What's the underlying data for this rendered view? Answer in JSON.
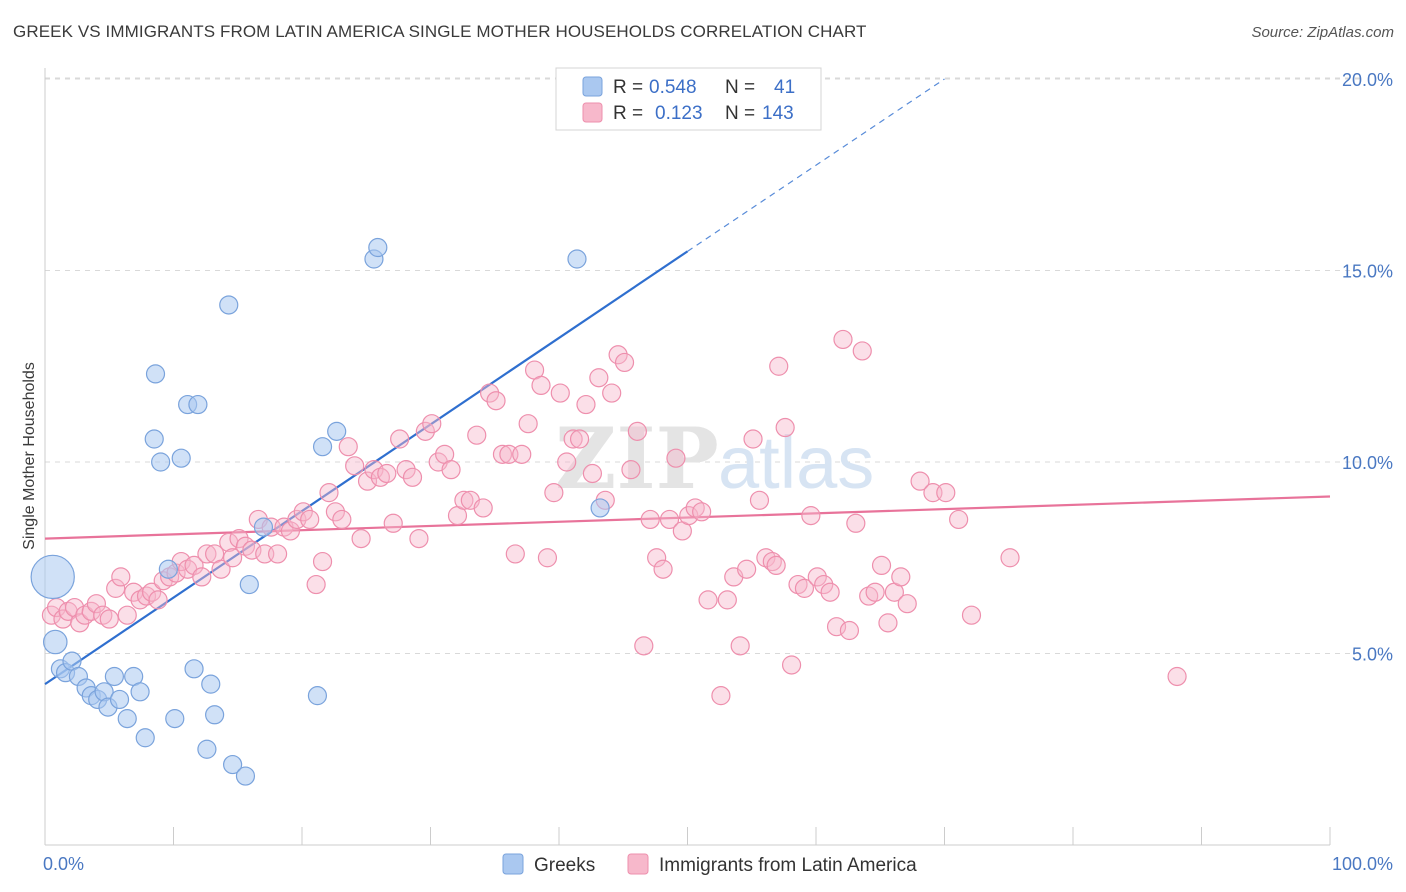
{
  "title": "GREEK VS IMMIGRANTS FROM LATIN AMERICA SINGLE MOTHER HOUSEHOLDS CORRELATION CHART",
  "source": "Source: ZipAtlas.com",
  "watermark": {
    "zip": "ZIP",
    "atlas": "atlas"
  },
  "colors": {
    "greeks_fill": "#aac8f0",
    "greeks_stroke": "#7aa3dc",
    "greeks_line": "#2f6fcf",
    "latam_fill": "#f7b8cb",
    "latam_stroke": "#ee8fad",
    "latam_line": "#e8739a",
    "grid": "#d9d9d9",
    "tick_text": "#4a78c2"
  },
  "legend": {
    "rows": [
      {
        "r_label": "R =",
        "r_value": "0.548",
        "n_label": "N =",
        "n_value": "41"
      },
      {
        "r_label": "R =",
        "r_value": "0.123",
        "n_label": "N =",
        "n_value": "143"
      }
    ]
  },
  "bottom_legend": [
    "Greeks",
    "Immigrants from Latin America"
  ],
  "chart_data": {
    "type": "scatter",
    "title": "GREEK VS IMMIGRANTS FROM LATIN AMERICA SINGLE MOTHER HOUSEHOLDS CORRELATION CHART",
    "xlabel": "",
    "ylabel": "Single Mother Households",
    "xlim": [
      0,
      100
    ],
    "ylim": [
      0,
      20.5
    ],
    "x_tick_labels": [
      "0.0%",
      "100.0%"
    ],
    "y_ticks": [
      5,
      10,
      15,
      20
    ],
    "y_tick_labels": [
      "5.0%",
      "10.0%",
      "15.0%",
      "20.0%"
    ],
    "grid": true,
    "legend_position": "top-center",
    "series": [
      {
        "name": "Greeks",
        "r": 0.548,
        "n": 41,
        "trend": {
          "x0": 0,
          "y0": 4.2,
          "x1": 50,
          "y1": 15.5,
          "dashed_to_x": 70,
          "dashed_to_y": 20.0
        },
        "points": [
          [
            0.6,
            7.0,
            2.4
          ],
          [
            0.8,
            5.3,
            1.3
          ],
          [
            1.2,
            4.6,
            1
          ],
          [
            1.6,
            4.5,
            1
          ],
          [
            2.1,
            4.8,
            1
          ],
          [
            2.6,
            4.4,
            1
          ],
          [
            3.2,
            4.1,
            1
          ],
          [
            3.6,
            3.9,
            1
          ],
          [
            4.1,
            3.8,
            1
          ],
          [
            4.6,
            4.0,
            1
          ],
          [
            4.9,
            3.6,
            1
          ],
          [
            5.4,
            4.4,
            1
          ],
          [
            5.8,
            3.8,
            1
          ],
          [
            6.4,
            3.3,
            1
          ],
          [
            6.9,
            4.4,
            1
          ],
          [
            7.4,
            4.0,
            1
          ],
          [
            7.8,
            2.8,
            1
          ],
          [
            8.5,
            10.6,
            1
          ],
          [
            8.6,
            12.3,
            1
          ],
          [
            9.0,
            10.0,
            1
          ],
          [
            9.6,
            7.2,
            1
          ],
          [
            10.1,
            3.3,
            1
          ],
          [
            10.6,
            10.1,
            1
          ],
          [
            11.1,
            11.5,
            1
          ],
          [
            11.6,
            4.6,
            1
          ],
          [
            11.9,
            11.5,
            1
          ],
          [
            12.6,
            2.5,
            1
          ],
          [
            12.9,
            4.2,
            1
          ],
          [
            13.2,
            3.4,
            1
          ],
          [
            14.3,
            14.1,
            1
          ],
          [
            14.6,
            2.1,
            1
          ],
          [
            15.6,
            1.8,
            1
          ],
          [
            15.9,
            6.8,
            1
          ],
          [
            17.0,
            8.3,
            1
          ],
          [
            21.2,
            3.9,
            1
          ],
          [
            21.6,
            10.4,
            1
          ],
          [
            22.7,
            10.8,
            1
          ],
          [
            25.6,
            15.3,
            1
          ],
          [
            25.9,
            15.6,
            1
          ],
          [
            41.4,
            15.3,
            1
          ],
          [
            43.2,
            8.8,
            1
          ]
        ]
      },
      {
        "name": "Immigrants from Latin America",
        "r": 0.123,
        "n": 143,
        "trend": {
          "x0": 0,
          "y0": 8.0,
          "x1": 100,
          "y1": 9.1
        },
        "points": [
          [
            0.5,
            6.0
          ],
          [
            0.9,
            6.2
          ],
          [
            1.4,
            5.9
          ],
          [
            1.8,
            6.1
          ],
          [
            2.3,
            6.2
          ],
          [
            2.7,
            5.8
          ],
          [
            3.1,
            6.0
          ],
          [
            3.6,
            6.1
          ],
          [
            4.0,
            6.3
          ],
          [
            4.5,
            6.0
          ],
          [
            5.0,
            5.9
          ],
          [
            5.5,
            6.7
          ],
          [
            5.9,
            7.0
          ],
          [
            6.4,
            6.0
          ],
          [
            6.9,
            6.6
          ],
          [
            7.4,
            6.4
          ],
          [
            7.9,
            6.5
          ],
          [
            8.3,
            6.6
          ],
          [
            8.8,
            6.4
          ],
          [
            9.2,
            6.9
          ],
          [
            9.7,
            7.0
          ],
          [
            10.2,
            7.1
          ],
          [
            10.6,
            7.4
          ],
          [
            11.1,
            7.2
          ],
          [
            11.6,
            7.3
          ],
          [
            12.2,
            7.0
          ],
          [
            12.6,
            7.6
          ],
          [
            13.2,
            7.6
          ],
          [
            13.7,
            7.2
          ],
          [
            14.3,
            7.9
          ],
          [
            14.6,
            7.5
          ],
          [
            15.1,
            8.0
          ],
          [
            15.6,
            7.8
          ],
          [
            16.1,
            7.7
          ],
          [
            16.6,
            8.5
          ],
          [
            17.1,
            7.6
          ],
          [
            17.6,
            8.3
          ],
          [
            18.1,
            7.6
          ],
          [
            18.6,
            8.3
          ],
          [
            19.1,
            8.2
          ],
          [
            19.6,
            8.5
          ],
          [
            20.1,
            8.7
          ],
          [
            20.6,
            8.5
          ],
          [
            21.1,
            6.8
          ],
          [
            21.6,
            7.4
          ],
          [
            22.1,
            9.2
          ],
          [
            22.6,
            8.7
          ],
          [
            23.1,
            8.5
          ],
          [
            23.6,
            10.4
          ],
          [
            24.1,
            9.9
          ],
          [
            24.6,
            8.0
          ],
          [
            25.1,
            9.5
          ],
          [
            25.6,
            9.8
          ],
          [
            26.1,
            9.6
          ],
          [
            26.6,
            9.7
          ],
          [
            27.1,
            8.4
          ],
          [
            27.6,
            10.6
          ],
          [
            28.1,
            9.8
          ],
          [
            28.6,
            9.6
          ],
          [
            29.1,
            8.0
          ],
          [
            29.6,
            10.8
          ],
          [
            30.1,
            11.0
          ],
          [
            30.6,
            10.0
          ],
          [
            31.1,
            10.2
          ],
          [
            31.6,
            9.8
          ],
          [
            32.1,
            8.6
          ],
          [
            32.6,
            9.0
          ],
          [
            33.1,
            9.0
          ],
          [
            33.6,
            10.7
          ],
          [
            34.1,
            8.8
          ],
          [
            34.6,
            11.8
          ],
          [
            35.1,
            11.6
          ],
          [
            35.6,
            10.2
          ],
          [
            36.1,
            10.2
          ],
          [
            36.6,
            7.6
          ],
          [
            37.1,
            10.2
          ],
          [
            37.6,
            11.0
          ],
          [
            38.1,
            12.4
          ],
          [
            38.6,
            12.0
          ],
          [
            39.1,
            7.5
          ],
          [
            39.6,
            9.2
          ],
          [
            40.1,
            11.8
          ],
          [
            40.6,
            10.0
          ],
          [
            41.1,
            10.6
          ],
          [
            41.6,
            10.6
          ],
          [
            42.1,
            11.5
          ],
          [
            42.6,
            9.7
          ],
          [
            43.1,
            12.2
          ],
          [
            43.6,
            9.0
          ],
          [
            44.1,
            11.8
          ],
          [
            44.6,
            12.8
          ],
          [
            45.1,
            12.6
          ],
          [
            45.6,
            9.8
          ],
          [
            46.1,
            10.8
          ],
          [
            46.6,
            5.2
          ],
          [
            47.1,
            8.5
          ],
          [
            47.6,
            7.5
          ],
          [
            48.1,
            7.2
          ],
          [
            48.6,
            8.5
          ],
          [
            49.1,
            10.1
          ],
          [
            49.6,
            8.2
          ],
          [
            50.1,
            8.6
          ],
          [
            50.6,
            8.8
          ],
          [
            51.1,
            8.7
          ],
          [
            51.6,
            6.4
          ],
          [
            52.6,
            3.9
          ],
          [
            53.1,
            6.4
          ],
          [
            53.6,
            7.0
          ],
          [
            54.1,
            5.2
          ],
          [
            54.6,
            7.2
          ],
          [
            55.1,
            10.6
          ],
          [
            55.6,
            9.0
          ],
          [
            56.1,
            7.5
          ],
          [
            56.6,
            7.4
          ],
          [
            57.1,
            12.5
          ],
          [
            57.6,
            10.9
          ],
          [
            58.1,
            4.7
          ],
          [
            58.6,
            6.8
          ],
          [
            59.1,
            6.7
          ],
          [
            59.6,
            8.6
          ],
          [
            60.1,
            7.0
          ],
          [
            60.6,
            6.8
          ],
          [
            61.1,
            6.6
          ],
          [
            61.6,
            5.7
          ],
          [
            62.1,
            13.2
          ],
          [
            62.6,
            5.6
          ],
          [
            63.1,
            8.4
          ],
          [
            63.6,
            12.9
          ],
          [
            64.1,
            6.5
          ],
          [
            64.6,
            6.6
          ],
          [
            65.1,
            7.3
          ],
          [
            65.6,
            5.8
          ],
          [
            66.1,
            6.6
          ],
          [
            66.6,
            7.0
          ],
          [
            67.1,
            6.3
          ],
          [
            68.1,
            9.5
          ],
          [
            69.1,
            9.2
          ],
          [
            70.1,
            9.2
          ],
          [
            71.1,
            8.5
          ],
          [
            72.1,
            6.0
          ],
          [
            75.1,
            7.5
          ],
          [
            88.1,
            4.4
          ],
          [
            56.9,
            7.3
          ]
        ]
      }
    ]
  }
}
